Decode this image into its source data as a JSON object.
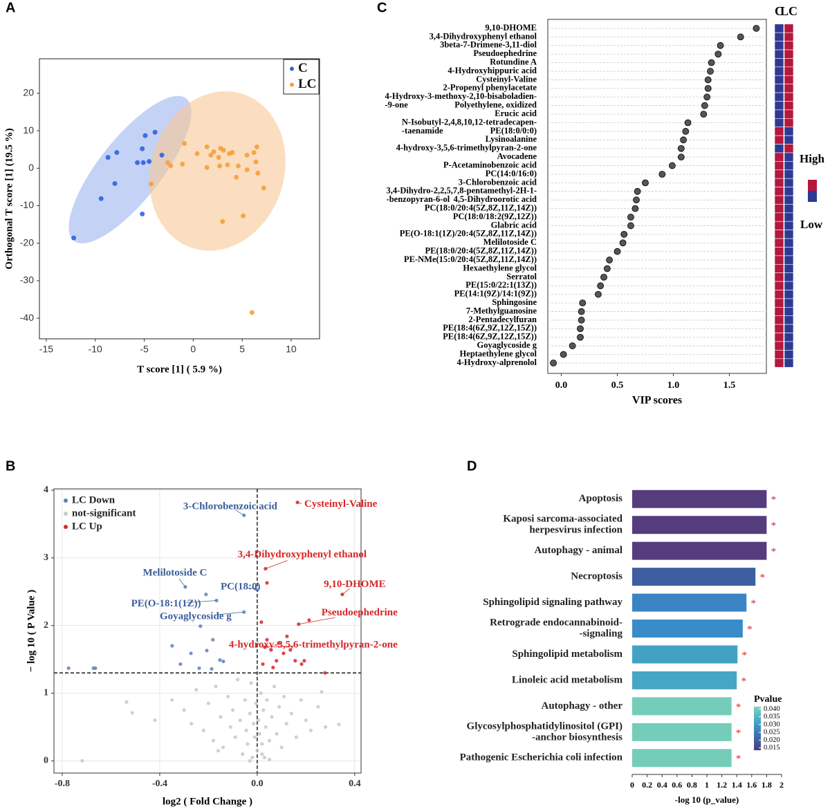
{
  "chart_data": [
    {
      "type": "scatter",
      "panel": "A",
      "x_label": "T score [1] ( 5.9 %)",
      "y_label": "Orthogonal T score [1] (19.5 %)",
      "xlim": [
        -15.7,
        12.9
      ],
      "ylim": [
        -45.5,
        29.2
      ],
      "xticks": [
        -15,
        -10,
        -5,
        0,
        5,
        10
      ],
      "yticks": [
        -40,
        -30,
        -20,
        -10,
        0,
        10,
        20
      ],
      "grid": false,
      "legend": "upper right",
      "series": [
        {
          "name": "C",
          "color": "#2f63e0",
          "ellipse_color": "#9db4ee",
          "x": [
            -12.2,
            -9.4,
            -8.7,
            -7.8,
            -8.0,
            -5.2,
            -4.9,
            -3.9,
            -5.7,
            -5.1,
            -4.5,
            -3.2,
            -5.2
          ],
          "y": [
            -18.6,
            -8.1,
            2.9,
            4.2,
            -4.1,
            5.2,
            8.7,
            9.6,
            1.5,
            1.5,
            1.8,
            3.5,
            -12.2
          ],
          "ellipse": {
            "center": [
              -6.45,
              -0.37
            ],
            "axes": [
              [
                5.74,
                19.0
              ],
              [
                2.5,
                -5.1
              ]
            ]
          }
        },
        {
          "name": "LC",
          "color": "#f5a03a",
          "ellipse_color": "#f8c896",
          "x": [
            -0.9,
            -2.6,
            -2.3,
            -1.1,
            -4.3,
            0.4,
            1.4,
            1.8,
            2.1,
            2.6,
            2.8,
            3.1,
            3.7,
            4.0,
            1.4,
            2.7,
            3.5,
            4.6,
            5.5,
            6.2,
            6.5,
            6.4,
            6.6,
            7.2,
            5.5,
            4.4,
            3.0,
            5.1,
            6.0
          ],
          "y": [
            6.6,
            1.5,
            0.7,
            1.1,
            -4.2,
            3.9,
            5.7,
            3.5,
            4.4,
            2.9,
            5.3,
            4.8,
            3.9,
            4.2,
            0.2,
            0.6,
            0.9,
            0.6,
            3.5,
            4.2,
            5.7,
            1.7,
            -1.3,
            -5.3,
            -0.4,
            -2.4,
            -14.2,
            -12.7,
            -38.5
          ],
          "ellipse": {
            "center": [
              2.48,
              -0.74
            ],
            "axes": [
              [
                1.42,
                21.2
              ],
              [
                6.8,
                -1.84
              ]
            ]
          }
        }
      ]
    },
    {
      "type": "scatter",
      "panel": "B",
      "x_label": "log2 ( Fold Change )",
      "y_label": "− log 10 ( P Value )",
      "xlim": [
        -0.834,
        0.426
      ],
      "ylim": [
        -0.18,
        4.02
      ],
      "xticks": [
        -0.8,
        -0.4,
        {
          "value": 0,
          "label": "0.0"
        },
        0.4
      ],
      "yticks": [
        0,
        1,
        2,
        3,
        4
      ],
      "grid": true,
      "legend": "upper left",
      "reference_lines": {
        "x": 0,
        "y": 1.3
      },
      "series": [
        {
          "name": "LC Down",
          "color": "#5b82bb",
          "x": [
            -0.774,
            -0.672,
            -0.664,
            -0.349,
            -0.315,
            -0.272,
            -0.238,
            -0.233,
            -0.207,
            -0.187,
            -0.153,
            -0.139,
            -0.182,
            -0.295,
            -0.21,
            -0.167,
            -0.006,
            -0.054,
            -0.054
          ],
          "y": [
            1.37,
            1.37,
            1.37,
            1.7,
            1.43,
            1.59,
            1.37,
            1.99,
            1.63,
            1.36,
            1.49,
            1.47,
            1.79,
            2.57,
            2.46,
            2.37,
            2.54,
            2.2,
            3.63
          ]
        },
        {
          "name": "not-significant",
          "color": "#c8c8c8",
          "x": [
            -0.718,
            -0.536,
            -0.513,
            -0.42,
            -0.35,
            -0.3,
            -0.27,
            -0.25,
            -0.22,
            -0.2,
            -0.18,
            -0.17,
            -0.15,
            -0.14,
            -0.12,
            -0.11,
            -0.1,
            -0.09,
            -0.08,
            -0.07,
            -0.06,
            -0.05,
            -0.045,
            -0.04,
            -0.03,
            -0.025,
            -0.02,
            -0.015,
            -0.01,
            -0.005,
            0,
            0.005,
            0.01,
            0.015,
            0.02,
            0.025,
            0.03,
            0.035,
            0.04,
            0.05,
            0.06,
            0.07,
            0.08,
            0.09,
            0.1,
            0.11,
            0.12,
            0.14,
            0.16,
            0.18,
            0.2,
            0.22,
            0.25,
            0.28,
            0.335,
            0.264,
            -0.16,
            0.05,
            -0.03,
            0.02
          ],
          "y": [
            0,
            0.87,
            0.71,
            0.6,
            0.9,
            0.75,
            0.55,
            1.05,
            0.45,
            0.85,
            0.3,
            1.1,
            0.65,
            0.2,
            0.95,
            0.5,
            0.75,
            0.35,
            1.2,
            0.6,
            0.1,
            0.9,
            0.45,
            0.25,
            0.7,
            1.15,
            0.05,
            0.55,
            0.35,
            0.85,
            0.15,
            0.6,
            0.4,
            1.0,
            0.25,
            0.75,
            0.05,
            0.5,
            0.9,
            0.3,
            0.65,
            1.1,
            0.4,
            0.8,
            0.2,
            0.95,
            0.55,
            0.7,
            0.35,
            0.9,
            0.6,
            0.45,
            0.8,
            0.5,
            0.54,
            1.02,
            0.15,
            0.02,
            0,
            0.1
          ]
        },
        {
          "name": "LC Up",
          "color": "#d62728",
          "x": [
            0.165,
            0.034,
            0.04,
            0.349,
            0.17,
            0.213,
            0.031,
            0.017,
            0.04,
            0.057,
            0.079,
            0.108,
            0.136,
            0.156,
            0.182,
            0.088,
            0.065,
            0.193,
            0.278,
            0.023,
            0.122
          ],
          "y": [
            3.82,
            2.84,
            2.63,
            2.46,
            2.02,
            2.08,
            1.68,
            2.05,
            1.79,
            1.64,
            1.48,
            1.59,
            1.64,
            1.48,
            1.43,
            1.74,
            1.38,
            1.48,
            1.3,
            1.43,
            1.84
          ]
        }
      ],
      "annotations": [
        {
          "text": "3-Chlorobenzoic acid",
          "x": -0.054,
          "y": 3.63,
          "color": "#3a5f9a"
        },
        {
          "text": "Cysteinyl-Valine",
          "x": 0.165,
          "y": 3.82,
          "color": "#d62728"
        },
        {
          "text": "3,4-Dihydroxyphenyl ethanol",
          "x": 0.034,
          "y": 2.84,
          "color": "#d62728"
        },
        {
          "text": "9,10-DHOME",
          "x": 0.349,
          "y": 2.46,
          "color": "#d62728"
        },
        {
          "text": "Melilotoside C",
          "x": -0.295,
          "y": 2.57,
          "color": "#3a5f9a"
        },
        {
          "text": "PC(18:0)",
          "x": -0.006,
          "y": 2.54,
          "color": "#3a5f9a"
        },
        {
          "text": "PE(O-18:1(1Z))",
          "x": -0.167,
          "y": 2.37,
          "color": "#3a5f9a"
        },
        {
          "text": "Goyaglycoside g",
          "x": -0.054,
          "y": 2.2,
          "color": "#3a5f9a"
        },
        {
          "text": "Pseudoephedrine",
          "x": 0.17,
          "y": 2.02,
          "color": "#d62728"
        },
        {
          "text": "4-hydroxy-3,5,6-trimethylpyran-2-one",
          "x": 0.031,
          "y": 1.68,
          "color": "#d62728"
        }
      ]
    },
    {
      "type": "dot",
      "panel": "C",
      "x_label": "VIP scores",
      "xlim": [
        -0.12,
        1.83
      ],
      "xticks": [
        {
          "value": 0,
          "label": "0.0"
        },
        0.5,
        {
          "value": 1,
          "label": "1.0"
        },
        1.5
      ],
      "color": "#555555",
      "categories": [
        [
          "9,10-DHOME"
        ],
        [
          "3,4-Dihydroxyphenyl ethanol"
        ],
        [
          "3beta-7-Drimene-3,11-diol"
        ],
        [
          "Pseudoephedrine"
        ],
        [
          "Rotundine A"
        ],
        [
          "4-Hydroxyhippuric acid"
        ],
        [
          "Cysteinyl-Valine"
        ],
        [
          "2-Propenyl phenylacetate"
        ],
        [
          "4-Hydroxy-3-methoxy-2,10-bisaboladien-",
          "-9-one"
        ],
        [
          "Polyethylene, oxidized"
        ],
        [
          "Erucic acid"
        ],
        [
          "N-Isobutyl-2,4,8,10,12-tetradecapen-",
          "-taenamide"
        ],
        [
          "PE(18:0/0:0)"
        ],
        [
          "Lysinoalanine"
        ],
        [
          "4-hydroxy-3,5,6-trimethylpyran-2-one"
        ],
        [
          "Avocadene"
        ],
        [
          "P-Acetaminobenzoic acid"
        ],
        [
          "PC(14:0/16:0)"
        ],
        [
          "3-Chlorobenzoic acid"
        ],
        [
          "3,4-Dihydro-2,2,5,7,8-pentamethyl-2H-1-",
          "-benzopyran-6-ol"
        ],
        [
          "4,5-Dihydroorotic acid"
        ],
        [
          "PC(18:0/20:4(5Z,8Z,11Z,14Z))"
        ],
        [
          "PC(18:0/18:2(9Z,12Z))"
        ],
        [
          "Glabric acid"
        ],
        [
          "PE(O-18:1(1Z)/20:4(5Z,8Z,11Z,14Z))"
        ],
        [
          "Melilotoside C"
        ],
        [
          "PE(18:0/20:4(5Z,8Z,11Z,14Z))"
        ],
        [
          "PE-NMe(15:0/20:4(5Z,8Z,11Z,14Z))"
        ],
        [
          "Hexaethylene glycol"
        ],
        [
          "Serratol"
        ],
        [
          "PE(15:0/22:1(13Z))"
        ],
        [
          "PE(14:1(9Z)/14:1(9Z))"
        ],
        [
          "Sphingosine"
        ],
        [
          "7-Methylguanosine"
        ],
        [
          "2-Pentadecylfuran"
        ],
        [
          "PE(18:4(6Z,9Z,12Z,15Z))"
        ],
        [
          "PE(18:4(6Z,9Z,12Z,15Z))"
        ],
        [
          "Goyaglycoside g"
        ],
        [
          "Heptaethylene glycol"
        ],
        [
          "4-Hydroxy-alprenolol"
        ]
      ],
      "values": [
        1.74,
        1.6,
        1.42,
        1.4,
        1.34,
        1.33,
        1.31,
        1.31,
        1.3,
        1.28,
        1.27,
        1.13,
        1.11,
        1.09,
        1.07,
        1.07,
        0.99,
        0.9,
        0.75,
        0.68,
        0.67,
        0.66,
        0.62,
        0.62,
        0.56,
        0.55,
        0.5,
        0.43,
        0.41,
        0.38,
        0.35,
        0.33,
        0.19,
        0.18,
        0.18,
        0.17,
        0.17,
        0.1,
        0.02,
        -0.07
      ],
      "heatmap": {
        "columns": [
          "C",
          "LC"
        ],
        "values": [
          [
            "Low",
            "Low",
            "Low",
            "Low",
            "Low",
            "Low",
            "Low",
            "Low",
            "Low",
            "Low",
            "Low",
            "Low",
            "High",
            "High",
            "Low",
            "High",
            "High",
            "High",
            "High",
            "High",
            "High",
            "High",
            "High",
            "High",
            "High",
            "High",
            "High",
            "High",
            "High",
            "High",
            "High",
            "High",
            "High",
            "High",
            "High",
            "High",
            "High",
            "High",
            "High",
            "High"
          ],
          [
            "High",
            "High",
            "High",
            "High",
            "High",
            "High",
            "High",
            "High",
            "High",
            "High",
            "High",
            "High",
            "Low",
            "Low",
            "High",
            "Low",
            "Low",
            "Low",
            "Low",
            "Low",
            "Low",
            "Low",
            "Low",
            "Low",
            "Low",
            "Low",
            "Low",
            "Low",
            "Low",
            "Low",
            "Low",
            "Low",
            "Low",
            "Low",
            "Low",
            "Low",
            "Low",
            "Low",
            "Low",
            "Low"
          ]
        ],
        "colors": {
          "High": "#b5173d",
          "Low": "#2e3a92"
        },
        "legend": {
          "high": "High",
          "low": "Low"
        }
      }
    },
    {
      "type": "bar",
      "orientation": "horizontal",
      "panel": "D",
      "x_label": "-log 10 (p_value)",
      "xlim": [
        0,
        2
      ],
      "xticks": [
        0,
        0.2,
        0.4,
        0.6,
        0.8,
        1,
        1.2,
        1.4,
        1.6,
        1.8,
        2
      ],
      "categories": [
        [
          "Apoptosis"
        ],
        [
          "Kaposi sarcoma-associated",
          "herpesvirus infection"
        ],
        [
          "Autophagy - animal"
        ],
        [
          "Necroptosis"
        ],
        [
          "Sphingolipid signaling pathway"
        ],
        [
          "Retrograde endocannabinoid-",
          "-signaling"
        ],
        [
          "Sphingolipid metabolism"
        ],
        [
          "Linoleic acid metabolism"
        ],
        [
          "Autophagy - other"
        ],
        [
          "Glycosylphosphatidylinositol (GPI)",
          "-anchor biosynthesis"
        ],
        [
          "Pathogenic Escherichia coli infection"
        ]
      ],
      "values": [
        1.8,
        1.8,
        1.8,
        1.65,
        1.53,
        1.48,
        1.41,
        1.4,
        1.33,
        1.33,
        1.33
      ],
      "colors": [
        "#553c7d",
        "#553c7d",
        "#553c7d",
        "#3d5ea0",
        "#3a84c4",
        "#3a8cc8",
        "#43a2c4",
        "#46a6c4",
        "#74cdb9",
        "#74cdb9",
        "#74cdb9"
      ],
      "significance": [
        "*",
        "*",
        "*",
        "*",
        "*",
        "*",
        "*",
        "*",
        "*",
        "*",
        "*"
      ],
      "colorbar": {
        "title": "Pvalue",
        "lim": [
          0.0135,
          0.0415
        ],
        "colors": [
          "#4f3a7a",
          "#3b6fb2",
          "#45a6c6",
          "#7dd4c0"
        ],
        "ticks": [
          {
            "value": 0.04,
            "label": "0.040"
          },
          {
            "value": 0.035,
            "label": "0.035"
          },
          {
            "value": 0.03,
            "label": "0.030"
          },
          {
            "value": 0.025,
            "label": "0.025"
          },
          {
            "value": 0.02,
            "label": "0.020"
          },
          {
            "value": 0.015,
            "label": "0.015"
          }
        ]
      }
    }
  ]
}
